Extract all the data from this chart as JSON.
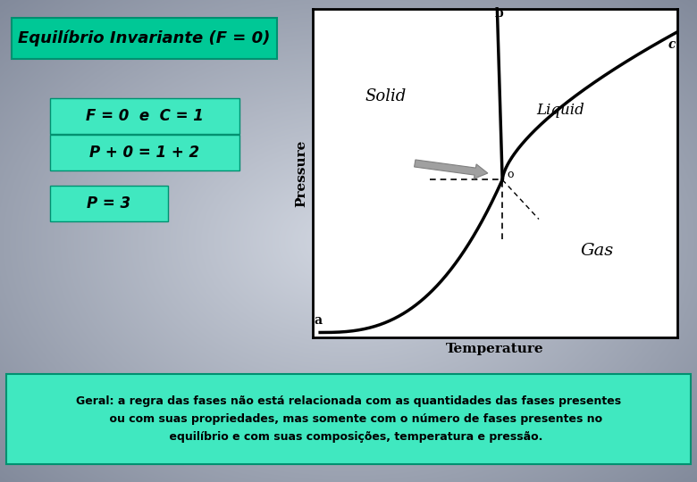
{
  "title": "Equilíbrio Invariante (F = 0)",
  "bg_color_light": "#c8cdd8",
  "bg_color_mid": "#9aa0b0",
  "bg_color_dark": "#808898",
  "teal_color": "#00c896",
  "box_bg": "#40e8c0",
  "text_color": "#000000",
  "line1": "F = 0  e  C = 1",
  "line2": "P + 0 = 1 + 2",
  "line3": "P = 3",
  "bottom_text_line1": "Geral: a regra das fases não está relacionada com as quantidades das fases presentes",
  "bottom_text_line2": "ou com suas propriedades, mas somente com o número de fases presentes no",
  "bottom_text_line3": "equilíbrio e com suas composições, temperatura e pressão."
}
